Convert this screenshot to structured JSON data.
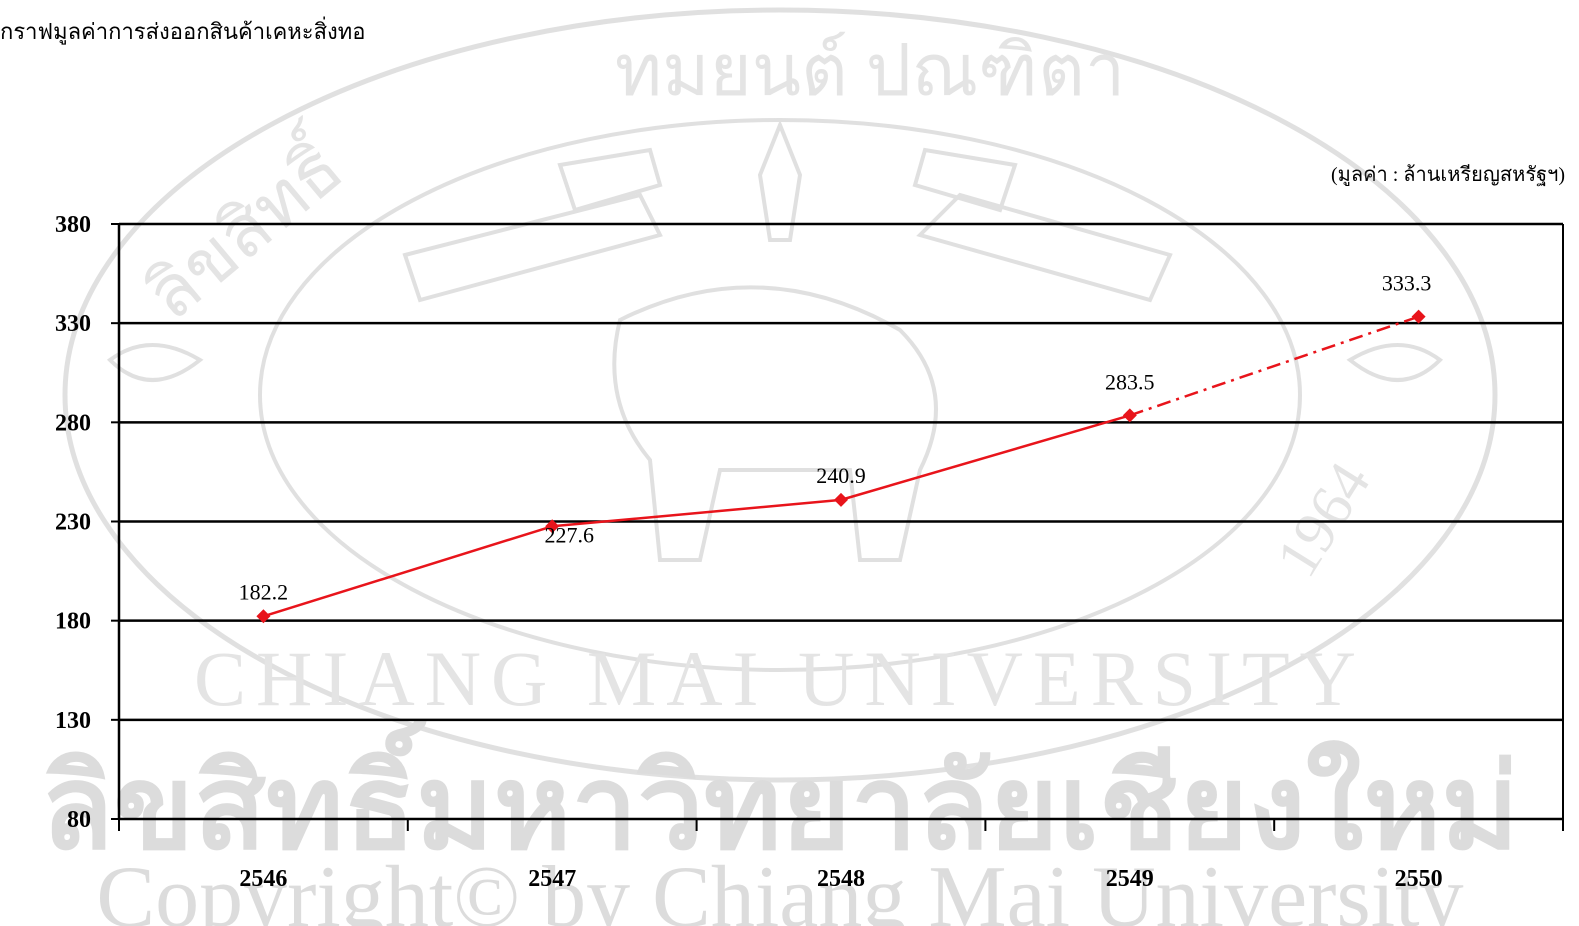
{
  "page": {
    "title": "กราฟมูลค่าการส่งออกสินค้าเคหะสิ่งทอ",
    "unit_note": "(มูลค่า : ล้านเหรียญสหรัฐฯ)"
  },
  "watermark": {
    "seal_top_text": "ลิขสิทธิ์",
    "seal_top_right": "ทมยนต์ ปณฑิตา",
    "seal_bottom_text": "CHIANG MAI UNIVERSITY",
    "seal_year": "1964",
    "thai_band": "ลิขสิทธิ์มหาวิทยาลัยเชียงใหม่",
    "copyright_band": "Copyright© by Chiang Mai University"
  },
  "chart_data": {
    "type": "line",
    "title": "กราฟมูลค่าการส่งออกสินค้าเคหะสิ่งทอ",
    "categories": [
      "2546",
      "2547",
      "2548",
      "2549",
      "2550"
    ],
    "series": [
      {
        "values": [
          182.2,
          227.6,
          240.9,
          283.5,
          333.3
        ],
        "color": "#e8141b",
        "projected_from_index": 3
      }
    ],
    "data_labels": [
      "182.2",
      "227.6",
      "240.9",
      "283.5",
      "333.3"
    ],
    "yticks": [
      "80",
      "130",
      "180",
      "230",
      "280",
      "330",
      "380"
    ],
    "ylim": [
      80,
      380
    ],
    "grid": true,
    "legend": "none"
  }
}
